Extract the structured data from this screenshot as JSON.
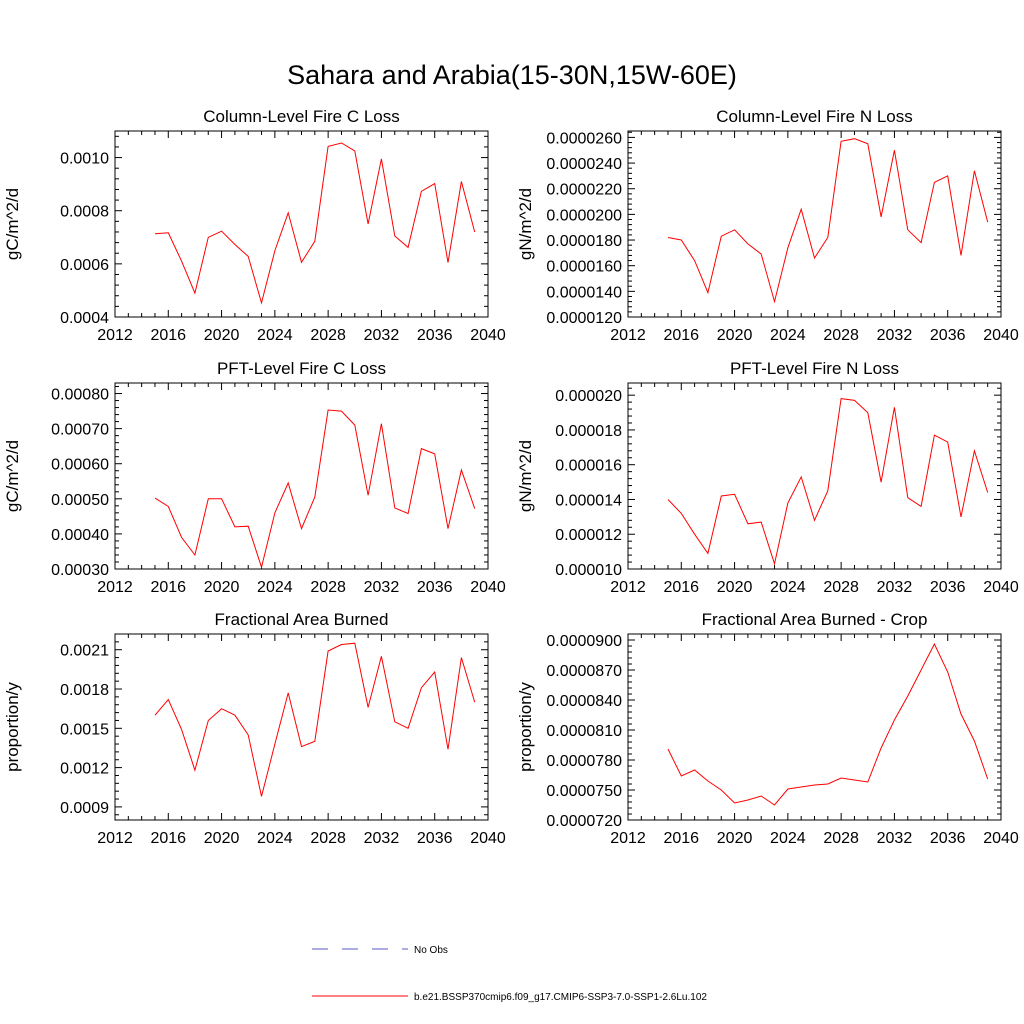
{
  "figure": {
    "title": "Sahara and Arabia(15-30N,15W-60E)"
  },
  "legend": {
    "entries": [
      {
        "label": "No Obs",
        "color": "#5a5ac8",
        "dash": true
      },
      {
        "label": "b.e21.BSSP370cmip6.f09_g17.CMIP6-SSP3-7.0-SSP1-2.6Lu.102",
        "color": "#ff0000",
        "dash": false
      }
    ]
  },
  "chart_data": [
    {
      "type": "line",
      "title": "Column-Level Fire C Loss",
      "ylabel": "gC/m^2/d",
      "xlim": [
        2012,
        2040
      ],
      "ylim": [
        0.0004,
        0.0011
      ],
      "xticks": [
        2012,
        2016,
        2020,
        2024,
        2028,
        2032,
        2036,
        2040
      ],
      "xtick_labels": [
        "2012",
        "2016",
        "2020",
        "2024",
        "2028",
        "2032",
        "2036",
        "2040"
      ],
      "yticks": [
        0.0004,
        0.0006,
        0.0008,
        0.001
      ],
      "ytick_labels": [
        "0.0004",
        "0.0006",
        "0.0008",
        "0.0010"
      ],
      "x": [
        2015,
        2016,
        2017,
        2018,
        2019,
        2020,
        2021,
        2022,
        2023,
        2024,
        2025,
        2026,
        2027,
        2028,
        2029,
        2030,
        2031,
        2032,
        2033,
        2034,
        2035,
        2036,
        2037,
        2038,
        2039
      ],
      "series": [
        {
          "color": "#ff0000",
          "values": [
            0.000713,
            0.000717,
            0.00061,
            0.00049,
            0.0007,
            0.000723,
            0.000673,
            0.000628,
            0.000453,
            0.00065,
            0.000792,
            0.000606,
            0.000685,
            0.001042,
            0.001055,
            0.001025,
            0.00075,
            0.000995,
            0.000705,
            0.000662,
            0.000873,
            0.000902,
            0.000605,
            0.00091,
            0.00072
          ]
        }
      ]
    },
    {
      "type": "line",
      "title": "Column-Level Fire N Loss",
      "ylabel": "gN/m^2/d",
      "xlim": [
        2012,
        2040
      ],
      "ylim": [
        1.2e-05,
        2.65e-05
      ],
      "xticks": [
        2012,
        2016,
        2020,
        2024,
        2028,
        2032,
        2036,
        2040
      ],
      "xtick_labels": [
        "2012",
        "2016",
        "2020",
        "2024",
        "2028",
        "2032",
        "2036",
        "2040"
      ],
      "yticks": [
        1.2e-05,
        1.4e-05,
        1.6e-05,
        1.8e-05,
        2e-05,
        2.2e-05,
        2.4e-05,
        2.6e-05
      ],
      "ytick_labels": [
        "0.0000120",
        "0.0000140",
        "0.0000160",
        "0.0000180",
        "0.0000200",
        "0.0000220",
        "0.0000240",
        "0.0000260"
      ],
      "x": [
        2015,
        2016,
        2017,
        2018,
        2019,
        2020,
        2021,
        2022,
        2023,
        2024,
        2025,
        2026,
        2027,
        2028,
        2029,
        2030,
        2031,
        2032,
        2033,
        2034,
        2035,
        2036,
        2037,
        2038,
        2039
      ],
      "series": [
        {
          "color": "#ff0000",
          "values": [
            1.82e-05,
            1.8e-05,
            1.64e-05,
            1.39e-05,
            1.83e-05,
            1.88e-05,
            1.77e-05,
            1.69e-05,
            1.32e-05,
            1.74e-05,
            2.04e-05,
            1.66e-05,
            1.82e-05,
            2.57e-05,
            2.59e-05,
            2.55e-05,
            1.98e-05,
            2.5e-05,
            1.88e-05,
            1.78e-05,
            2.25e-05,
            2.3e-05,
            1.68e-05,
            2.34e-05,
            1.94e-05
          ]
        }
      ]
    },
    {
      "type": "line",
      "title": "PFT-Level Fire C Loss",
      "ylabel": "gC/m^2/d",
      "xlim": [
        2012,
        2040
      ],
      "ylim": [
        0.0003,
        0.00083
      ],
      "xticks": [
        2012,
        2016,
        2020,
        2024,
        2028,
        2032,
        2036,
        2040
      ],
      "xtick_labels": [
        "2012",
        "2016",
        "2020",
        "2024",
        "2028",
        "2032",
        "2036",
        "2040"
      ],
      "yticks": [
        0.0003,
        0.0004,
        0.0005,
        0.0006,
        0.0007,
        0.0008
      ],
      "ytick_labels": [
        "0.00030",
        "0.00040",
        "0.00050",
        "0.00060",
        "0.00070",
        "0.00080"
      ],
      "x": [
        2015,
        2016,
        2017,
        2018,
        2019,
        2020,
        2021,
        2022,
        2023,
        2024,
        2025,
        2026,
        2027,
        2028,
        2029,
        2030,
        2031,
        2032,
        2033,
        2034,
        2035,
        2036,
        2037,
        2038,
        2039
      ],
      "series": [
        {
          "color": "#ff0000",
          "values": [
            0.000502,
            0.000478,
            0.00039,
            0.00034,
            0.0005,
            0.0005,
            0.00042,
            0.000422,
            0.000305,
            0.00046,
            0.000545,
            0.000415,
            0.000505,
            0.000753,
            0.00075,
            0.00071,
            0.00051,
            0.000714,
            0.000474,
            0.000458,
            0.000643,
            0.000628,
            0.000415,
            0.000582,
            0.000472
          ]
        }
      ]
    },
    {
      "type": "line",
      "title": "PFT-Level Fire N Loss",
      "ylabel": "gN/m^2/d",
      "xlim": [
        2012,
        2040
      ],
      "ylim": [
        1e-05,
        2.07e-05
      ],
      "xticks": [
        2012,
        2016,
        2020,
        2024,
        2028,
        2032,
        2036,
        2040
      ],
      "xtick_labels": [
        "2012",
        "2016",
        "2020",
        "2024",
        "2028",
        "2032",
        "2036",
        "2040"
      ],
      "yticks": [
        1e-05,
        1.2e-05,
        1.4e-05,
        1.6e-05,
        1.8e-05,
        2e-05
      ],
      "ytick_labels": [
        "0.000010",
        "0.000012",
        "0.000014",
        "0.000016",
        "0.000018",
        "0.000020"
      ],
      "x": [
        2015,
        2016,
        2017,
        2018,
        2019,
        2020,
        2021,
        2022,
        2023,
        2024,
        2025,
        2026,
        2027,
        2028,
        2029,
        2030,
        2031,
        2032,
        2033,
        2034,
        2035,
        2036,
        2037,
        2038,
        2039
      ],
      "series": [
        {
          "color": "#ff0000",
          "values": [
            1.4e-05,
            1.32e-05,
            1.2e-05,
            1.09e-05,
            1.42e-05,
            1.43e-05,
            1.26e-05,
            1.27e-05,
            1.03e-05,
            1.38e-05,
            1.53e-05,
            1.28e-05,
            1.45e-05,
            1.98e-05,
            1.97e-05,
            1.9e-05,
            1.5e-05,
            1.93e-05,
            1.41e-05,
            1.36e-05,
            1.77e-05,
            1.73e-05,
            1.3e-05,
            1.68e-05,
            1.44e-05
          ]
        }
      ]
    },
    {
      "type": "line",
      "title": "Fractional Area Burned",
      "ylabel": "proportion/y",
      "xlim": [
        2012,
        2040
      ],
      "ylim": [
        0.0008,
        0.00222
      ],
      "xticks": [
        2012,
        2016,
        2020,
        2024,
        2028,
        2032,
        2036,
        2040
      ],
      "xtick_labels": [
        "2012",
        "2016",
        "2020",
        "2024",
        "2028",
        "2032",
        "2036",
        "2040"
      ],
      "yticks": [
        0.0009,
        0.0012,
        0.0015,
        0.0018,
        0.0021
      ],
      "ytick_labels": [
        "0.0009",
        "0.0012",
        "0.0015",
        "0.0018",
        "0.0021"
      ],
      "x": [
        2015,
        2016,
        2017,
        2018,
        2019,
        2020,
        2021,
        2022,
        2023,
        2024,
        2025,
        2026,
        2027,
        2028,
        2029,
        2030,
        2031,
        2032,
        2033,
        2034,
        2035,
        2036,
        2037,
        2038,
        2039
      ],
      "series": [
        {
          "color": "#ff0000",
          "values": [
            0.0016,
            0.00172,
            0.00149,
            0.00118,
            0.00156,
            0.00165,
            0.0016,
            0.00145,
            0.00098,
            0.00138,
            0.00177,
            0.00136,
            0.0014,
            0.00209,
            0.00214,
            0.00215,
            0.00166,
            0.00205,
            0.00155,
            0.0015,
            0.00181,
            0.00193,
            0.00134,
            0.00204,
            0.0017
          ]
        }
      ]
    },
    {
      "type": "line",
      "title": "Fractional Area Burned - Crop",
      "ylabel": "proportion/y",
      "xlim": [
        2012,
        2040
      ],
      "ylim": [
        7.2e-05,
        9.06e-05
      ],
      "xticks": [
        2012,
        2016,
        2020,
        2024,
        2028,
        2032,
        2036,
        2040
      ],
      "xtick_labels": [
        "2012",
        "2016",
        "2020",
        "2024",
        "2028",
        "2032",
        "2036",
        "2040"
      ],
      "yticks": [
        7.2e-05,
        7.5e-05,
        7.8e-05,
        8.1e-05,
        8.4e-05,
        8.7e-05,
        9e-05
      ],
      "ytick_labels": [
        "0.0000720",
        "0.0000750",
        "0.0000780",
        "0.0000810",
        "0.0000840",
        "0.0000870",
        "0.0000900"
      ],
      "x": [
        2015,
        2016,
        2017,
        2018,
        2019,
        2020,
        2021,
        2022,
        2023,
        2024,
        2025,
        2026,
        2027,
        2028,
        2029,
        2030,
        2031,
        2032,
        2033,
        2034,
        2035,
        2036,
        2037,
        2038,
        2039
      ],
      "series": [
        {
          "color": "#ff0000",
          "values": [
            7.91e-05,
            7.64e-05,
            7.7e-05,
            7.59e-05,
            7.5e-05,
            7.37e-05,
            7.4e-05,
            7.44e-05,
            7.35e-05,
            7.51e-05,
            7.53e-05,
            7.55e-05,
            7.56e-05,
            7.62e-05,
            7.6e-05,
            7.58e-05,
            7.92e-05,
            8.2e-05,
            8.44e-05,
            8.7e-05,
            8.96e-05,
            8.68e-05,
            8.26e-05,
            7.99e-05,
            7.61e-05
          ]
        }
      ]
    }
  ]
}
